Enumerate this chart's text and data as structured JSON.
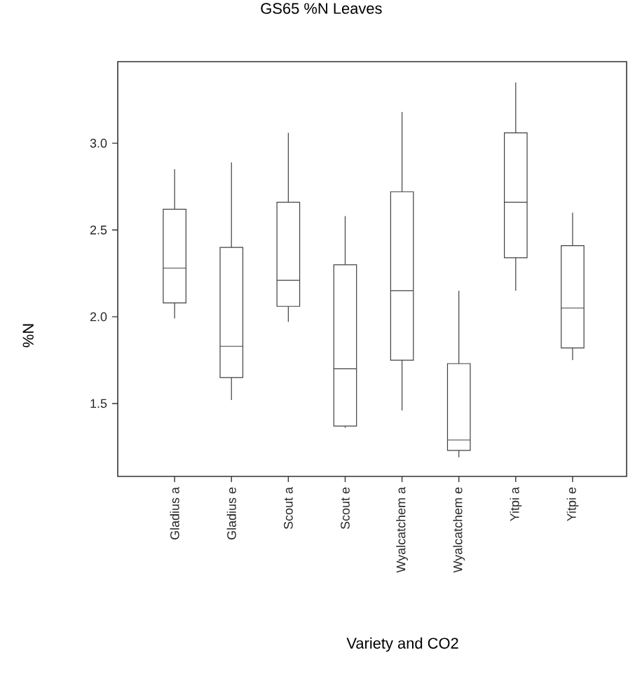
{
  "chart_data": {
    "type": "box",
    "title": "GS65 %N Leaves",
    "xlabel": "Variety and CO2",
    "ylabel": "%N",
    "categories": [
      "Gladius a",
      "Gladius e",
      "Scout a",
      "Scout e",
      "Wyalcatchem a",
      "Wyalcatchem e",
      "Yitpi a",
      "Yitpi e"
    ],
    "boxes": [
      {
        "low": 1.99,
        "q1": 2.08,
        "median": 2.28,
        "q3": 2.62,
        "high": 2.85
      },
      {
        "low": 1.52,
        "q1": 1.65,
        "median": 1.83,
        "q3": 2.4,
        "high": 2.89
      },
      {
        "low": 1.97,
        "q1": 2.06,
        "median": 2.21,
        "q3": 2.66,
        "high": 3.06
      },
      {
        "low": 1.36,
        "q1": 1.37,
        "median": 1.7,
        "q3": 2.3,
        "high": 2.58
      },
      {
        "low": 1.46,
        "q1": 1.75,
        "median": 2.15,
        "q3": 2.72,
        "high": 3.18
      },
      {
        "low": 1.19,
        "q1": 1.23,
        "median": 1.29,
        "q3": 1.73,
        "high": 2.15
      },
      {
        "low": 2.15,
        "q1": 2.34,
        "median": 2.66,
        "q3": 3.06,
        "high": 3.35
      },
      {
        "low": 1.75,
        "q1": 1.82,
        "median": 2.05,
        "q3": 2.41,
        "high": 2.6
      }
    ],
    "ylim": [
      1.08,
      3.47
    ],
    "yticks": [
      {
        "value": 1.5,
        "label": "1.5"
      },
      {
        "value": 2.0,
        "label": "2.0"
      },
      {
        "value": 2.5,
        "label": "2.5"
      },
      {
        "value": 3.0,
        "label": "3.0"
      }
    ]
  }
}
